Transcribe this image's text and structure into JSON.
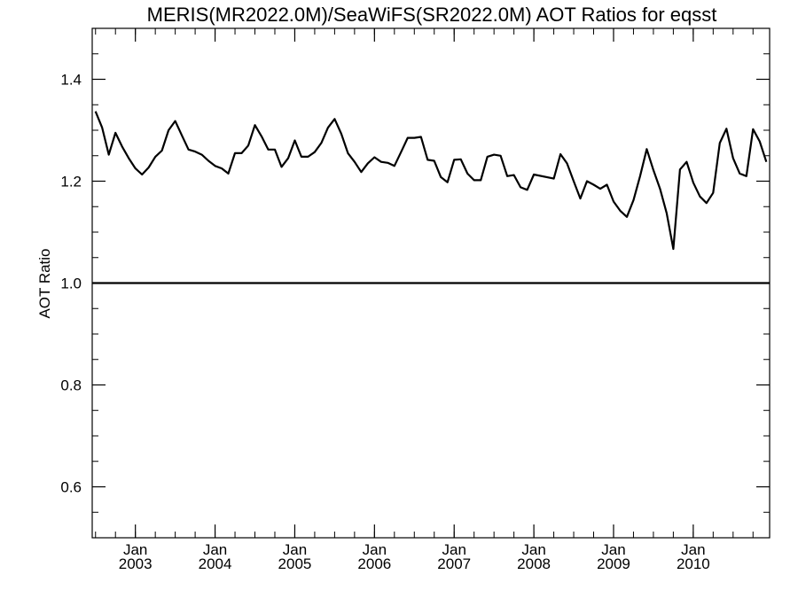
{
  "chart_data": {
    "type": "line",
    "title": "MERIS(MR2022.0M)/SeaWiFS(SR2022.0M)  AOT Ratios for eqsst",
    "xlabel": "",
    "ylabel": "AOT Ratio",
    "xlim": [
      "2002-07",
      "2010-12"
    ],
    "ylim": [
      0.5,
      1.5
    ],
    "yticks": [
      0.6,
      0.8,
      1.0,
      1.2,
      1.4
    ],
    "ytick_labels": [
      "0.6",
      "0.8",
      "1.0",
      "1.2",
      "1.4"
    ],
    "xtick_labels": [
      {
        "month": "Jan",
        "year": "2003"
      },
      {
        "month": "Jan",
        "year": "2004"
      },
      {
        "month": "Jan",
        "year": "2005"
      },
      {
        "month": "Jan",
        "year": "2006"
      },
      {
        "month": "Jan",
        "year": "2007"
      },
      {
        "month": "Jan",
        "year": "2008"
      },
      {
        "month": "Jan",
        "year": "2009"
      },
      {
        "month": "Jan",
        "year": "2010"
      }
    ],
    "reference_line": 1.0,
    "grid": false,
    "series": [
      {
        "x": [
          "2002-07",
          "2002-08",
          "2002-09",
          "2002-10",
          "2002-11",
          "2002-12",
          "2003-01",
          "2003-02",
          "2003-03",
          "2003-04",
          "2003-05",
          "2003-06",
          "2003-07",
          "2003-08",
          "2003-09",
          "2003-10",
          "2003-11",
          "2003-12",
          "2004-01",
          "2004-02",
          "2004-03",
          "2004-04",
          "2004-05",
          "2004-06",
          "2004-07",
          "2004-08",
          "2004-09",
          "2004-10",
          "2004-11",
          "2004-12",
          "2005-01",
          "2005-02",
          "2005-03",
          "2005-04",
          "2005-05",
          "2005-06",
          "2005-07",
          "2005-08",
          "2005-09",
          "2005-10",
          "2005-11",
          "2005-12",
          "2006-01",
          "2006-02",
          "2006-03",
          "2006-04",
          "2006-05",
          "2006-06",
          "2006-07",
          "2006-08",
          "2006-09",
          "2006-10",
          "2006-11",
          "2006-12",
          "2007-01",
          "2007-02",
          "2007-03",
          "2007-04",
          "2007-05",
          "2007-06",
          "2007-07",
          "2007-08",
          "2007-09",
          "2007-10",
          "2007-11",
          "2007-12",
          "2008-01",
          "2008-04",
          "2008-05",
          "2008-06",
          "2008-07",
          "2008-08",
          "2008-09",
          "2008-10",
          "2008-11",
          "2008-12",
          "2009-01",
          "2009-02",
          "2009-03",
          "2009-04",
          "2009-05",
          "2009-06",
          "2009-07",
          "2009-08",
          "2009-09",
          "2009-10",
          "2009-11",
          "2009-12",
          "2010-01",
          "2010-02",
          "2010-03",
          "2010-04",
          "2010-05",
          "2010-06",
          "2010-07",
          "2010-08",
          "2010-09",
          "2010-10",
          "2010-11",
          "2010-12"
        ],
        "values": [
          1.337,
          1.305,
          1.252,
          1.295,
          1.268,
          1.245,
          1.225,
          1.213,
          1.227,
          1.248,
          1.26,
          1.3,
          1.318,
          1.29,
          1.262,
          1.258,
          1.252,
          1.24,
          1.23,
          1.225,
          1.215,
          1.255,
          1.255,
          1.27,
          1.31,
          1.288,
          1.262,
          1.262,
          1.228,
          1.245,
          1.28,
          1.248,
          1.248,
          1.257,
          1.275,
          1.305,
          1.322,
          1.293,
          1.255,
          1.238,
          1.218,
          1.235,
          1.247,
          1.238,
          1.236,
          1.23,
          1.257,
          1.285,
          1.285,
          1.287,
          1.242,
          1.24,
          1.208,
          1.198,
          1.242,
          1.243,
          1.215,
          1.202,
          1.202,
          1.248,
          1.252,
          1.25,
          1.21,
          1.212,
          1.188,
          1.183,
          1.213,
          1.205,
          1.253,
          1.235,
          1.2,
          1.166,
          1.2,
          1.193,
          1.185,
          1.193,
          1.16,
          1.142,
          1.13,
          1.163,
          1.21,
          1.263,
          1.222,
          1.185,
          1.137,
          1.067,
          1.223,
          1.238,
          1.197,
          1.17,
          1.157,
          1.177,
          1.275,
          1.303,
          1.245,
          1.215,
          1.21,
          1.302,
          1.278,
          1.238
        ]
      }
    ]
  }
}
